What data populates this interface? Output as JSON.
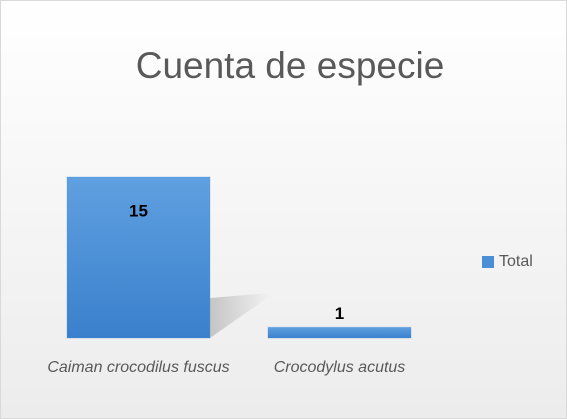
{
  "chart_data": {
    "type": "bar",
    "title": "Cuenta de especie",
    "categories": [
      "Caiman crocodilus fuscus",
      "Crocodylus acutus"
    ],
    "series": [
      {
        "name": "Total",
        "color": "#4a8fd6",
        "values": [
          15,
          1
        ]
      }
    ],
    "legend": "right"
  }
}
